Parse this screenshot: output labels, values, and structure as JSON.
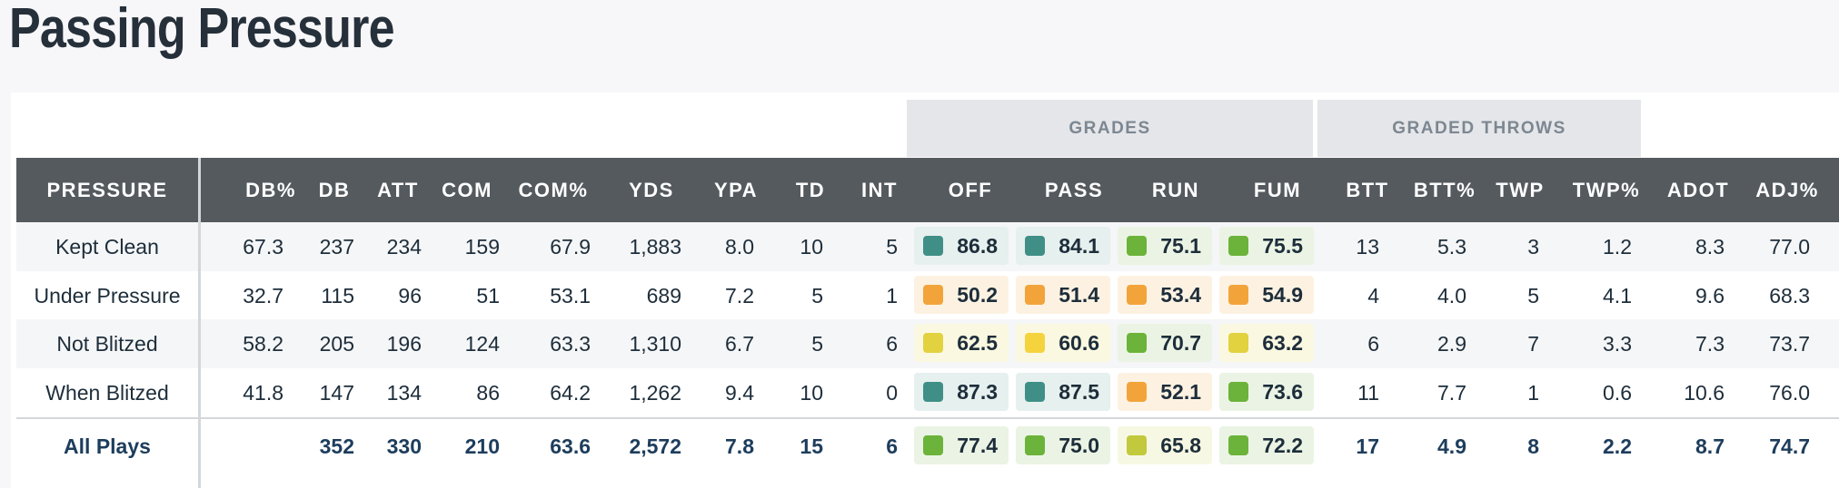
{
  "page": {
    "title": "Passing Pressure"
  },
  "groups": {
    "grades": "GRADES",
    "graded_throws": "GRADED THROWS"
  },
  "headers": [
    "PRESSURE",
    "DB%",
    "DB",
    "ATT",
    "COM",
    "COM%",
    "YDS",
    "YPA",
    "TD",
    "INT",
    "OFF",
    "PASS",
    "RUN",
    "FUM",
    "BTT",
    "BTT%",
    "TWP",
    "TWP%",
    "ADOT",
    "ADJ%"
  ],
  "colors": {
    "teal": "#3f8f87",
    "green": "#6bb33a",
    "lime": "#c2c93c",
    "yellow": "#e2d23f",
    "gold": "#f5d33d",
    "orange": "#f2a43a",
    "bg_teal": "#e6f0ee",
    "bg_green": "#ebf4e4",
    "bg_orange": "#fdf2e2",
    "bg_yellow": "#fbf8e1",
    "bg_lime": "#f7f8e3"
  },
  "rows": [
    {
      "label": "Kept Clean",
      "db_pct": "67.3",
      "db": "237",
      "att": "234",
      "com": "159",
      "com_pct": "67.9",
      "yds": "1,883",
      "ypa": "8.0",
      "td": "10",
      "int": "5",
      "off": "86.8",
      "pass": "84.1",
      "run": "75.1",
      "fum": "75.5",
      "btt": "13",
      "btt_pct": "5.3",
      "twp": "3",
      "twp_pct": "1.2",
      "adot": "8.3",
      "adj_pct": "77.0",
      "grade_colors": [
        "teal",
        "teal",
        "green",
        "green"
      ]
    },
    {
      "label": "Under Pressure",
      "db_pct": "32.7",
      "db": "115",
      "att": "96",
      "com": "51",
      "com_pct": "53.1",
      "yds": "689",
      "ypa": "7.2",
      "td": "5",
      "int": "1",
      "off": "50.2",
      "pass": "51.4",
      "run": "53.4",
      "fum": "54.9",
      "btt": "4",
      "btt_pct": "4.0",
      "twp": "5",
      "twp_pct": "4.1",
      "adot": "9.6",
      "adj_pct": "68.3",
      "grade_colors": [
        "orange",
        "orange",
        "orange",
        "orange"
      ]
    },
    {
      "label": "Not Blitzed",
      "db_pct": "58.2",
      "db": "205",
      "att": "196",
      "com": "124",
      "com_pct": "63.3",
      "yds": "1,310",
      "ypa": "6.7",
      "td": "5",
      "int": "6",
      "off": "62.5",
      "pass": "60.6",
      "run": "70.7",
      "fum": "63.2",
      "btt": "6",
      "btt_pct": "2.9",
      "twp": "7",
      "twp_pct": "3.3",
      "adot": "7.3",
      "adj_pct": "73.7",
      "grade_colors": [
        "yellow",
        "gold",
        "green",
        "yellow"
      ]
    },
    {
      "label": "When Blitzed",
      "db_pct": "41.8",
      "db": "147",
      "att": "134",
      "com": "86",
      "com_pct": "64.2",
      "yds": "1,262",
      "ypa": "9.4",
      "td": "10",
      "int": "0",
      "off": "87.3",
      "pass": "87.5",
      "run": "52.1",
      "fum": "73.6",
      "btt": "11",
      "btt_pct": "7.7",
      "twp": "1",
      "twp_pct": "0.6",
      "adot": "10.6",
      "adj_pct": "76.0",
      "grade_colors": [
        "teal",
        "teal",
        "orange",
        "green"
      ]
    }
  ],
  "total": {
    "label": "All Plays",
    "db_pct": "",
    "db": "352",
    "att": "330",
    "com": "210",
    "com_pct": "63.6",
    "yds": "2,572",
    "ypa": "7.8",
    "td": "15",
    "int": "6",
    "off": "77.4",
    "pass": "75.0",
    "run": "65.8",
    "fum": "72.2",
    "btt": "17",
    "btt_pct": "4.9",
    "twp": "8",
    "twp_pct": "2.2",
    "adot": "8.7",
    "adj_pct": "74.7",
    "grade_colors": [
      "green",
      "green",
      "lime",
      "green"
    ]
  }
}
